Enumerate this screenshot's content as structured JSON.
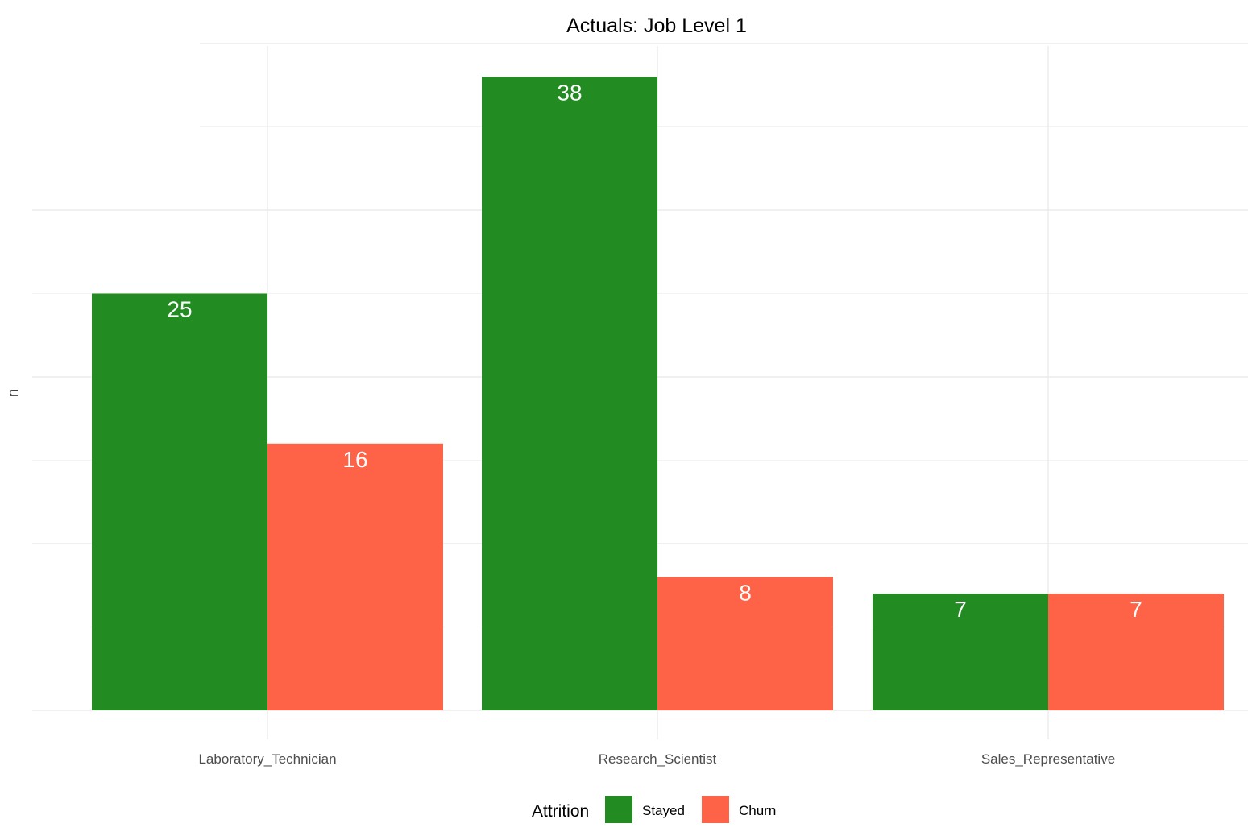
{
  "chart_data": {
    "type": "bar",
    "title": "Actuals: Job Level 1",
    "xlabel": "",
    "ylabel": "n",
    "categories": [
      "Laboratory_Technician",
      "Research_Scientist",
      "Sales_Representative"
    ],
    "series": [
      {
        "name": "Stayed",
        "values": [
          25,
          38,
          7
        ],
        "color": "#228B22"
      },
      {
        "name": "Churn",
        "values": [
          16,
          8,
          7
        ],
        "color": "#FF6347"
      }
    ],
    "ylim": [
      0,
      40
    ],
    "grid": true,
    "y_tick_labels_shown": false,
    "legend": {
      "title": "Attrition",
      "position": "bottom"
    },
    "label_color": "#ffffff"
  }
}
